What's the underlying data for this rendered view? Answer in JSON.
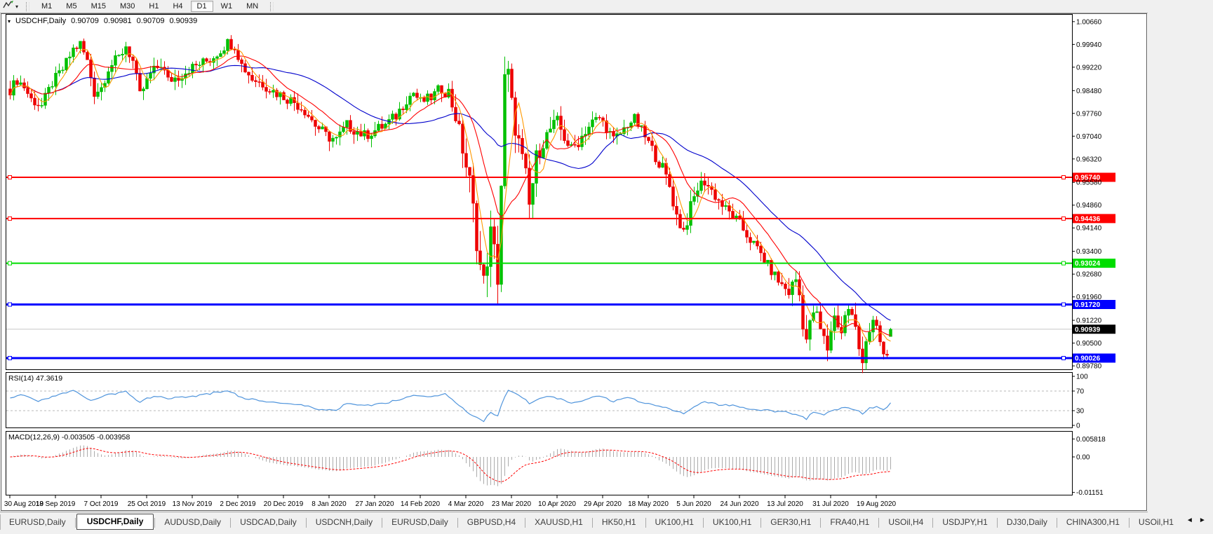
{
  "colors": {
    "up": "#00C000",
    "down": "#ED0000",
    "ma_fast": "#FF9900",
    "ma_mid": "#FF0000",
    "ma_slow": "#0000CC",
    "hline_red": "#FF0000",
    "hline_green": "#00DD00",
    "hline_blue": "#0000FF",
    "rsi_line": "#4F94DC",
    "macd_hist": "#ABABAB",
    "macd_signal": "#FF0000",
    "grid_current": "#C8C8C8",
    "toolbar_bg": "#F0F0F0",
    "pane_bg": "#FFFFFF"
  },
  "icons": {
    "caret_down": "▼",
    "caret_small": "▾",
    "scroll_left": "◄",
    "scroll_right": "►"
  },
  "toolbar": {
    "timeframes": [
      "M1",
      "M5",
      "M15",
      "M30",
      "H1",
      "H4",
      "D1",
      "W1",
      "MN"
    ],
    "active": "D1"
  },
  "chart": {
    "symbol": "USDCHF,Daily",
    "open": "0.90709",
    "high": "0.90981",
    "low": "0.90709",
    "close": "0.90939",
    "current_price_label": "0.90939"
  },
  "rsi": {
    "label": "RSI(14) 47.3619",
    "value": "47.3619"
  },
  "macd": {
    "label": "MACD(12,26,9) -0.003505 -0.003958",
    "macd_value": "-0.003505",
    "signal_value": "-0.003958"
  },
  "tabs": {
    "items": [
      {
        "label": "EURUSD,Daily",
        "active": false
      },
      {
        "label": "USDCHF,Daily",
        "active": true
      },
      {
        "label": "AUDUSD,Daily",
        "active": false
      },
      {
        "label": "USDCAD,Daily",
        "active": false
      },
      {
        "label": "USDCNH,Daily",
        "active": false
      },
      {
        "label": "EURUSD,Daily",
        "active": false
      },
      {
        "label": "GBPUSD,H4",
        "active": false
      },
      {
        "label": "XAUUSD,H1",
        "active": false
      },
      {
        "label": "HK50,H1",
        "active": false
      },
      {
        "label": "UK100,H1",
        "active": false
      },
      {
        "label": "UK100,H1",
        "active": false
      },
      {
        "label": "GER30,H1",
        "active": false
      },
      {
        "label": "FRA40,H1",
        "active": false
      },
      {
        "label": "USOil,H4",
        "active": false
      },
      {
        "label": "USDJPY,H1",
        "active": false
      },
      {
        "label": "DJ30,Daily",
        "active": false
      },
      {
        "label": "CHINA300,H1",
        "active": false
      },
      {
        "label": "USOil,H1",
        "active": false
      }
    ]
  },
  "chart_data": [
    {
      "type": "candlestick",
      "title": "USDCHF,Daily",
      "n_bars": 252,
      "ylim": [
        0.8967,
        1.009
      ],
      "y_ticks": [
        "1.00660",
        "0.99940",
        "0.99220",
        "0.98480",
        "0.97760",
        "0.97040",
        "0.96320",
        "0.95580",
        "0.94860",
        "0.94140",
        "0.93400",
        "0.92680",
        "0.91960",
        "0.91220",
        "0.90500",
        "0.89780"
      ],
      "x_tick_days": [
        0,
        13,
        26,
        39,
        52,
        65,
        78,
        91,
        104,
        117,
        130,
        143,
        156,
        169,
        182,
        195,
        208,
        221,
        234,
        247
      ],
      "x_tick_labels": [
        "30 Aug 2019",
        "18 Sep 2019",
        "7 Oct 2019",
        "25 Oct 2019",
        "13 Nov 2019",
        "2 Dec 2019",
        "20 Dec 2019",
        "8 Jan 2020",
        "27 Jan 2020",
        "14 Feb 2020",
        "4 Mar 2020",
        "23 Mar 2020",
        "10 Apr 2020",
        "29 Apr 2020",
        "18 May 2020",
        "5 Jun 2020",
        "24 Jun 2020",
        "13 Jul 2020",
        "31 Jul 2020",
        "19 Aug 2020"
      ],
      "last_bar": {
        "open": 0.90709,
        "high": 0.90981,
        "low": 0.90709,
        "close": 0.90939
      },
      "close_anchors": [
        [
          0,
          0.985
        ],
        [
          2,
          0.9882
        ],
        [
          4,
          0.986
        ],
        [
          6,
          0.982
        ],
        [
          9,
          0.98
        ],
        [
          12,
          0.9872
        ],
        [
          15,
          0.9915
        ],
        [
          18,
          0.9978
        ],
        [
          20,
          0.9995
        ],
        [
          22,
          0.994
        ],
        [
          24,
          0.9842
        ],
        [
          26,
          0.9858
        ],
        [
          28,
          0.992
        ],
        [
          31,
          0.9952
        ],
        [
          33,
          0.999
        ],
        [
          35,
          0.994
        ],
        [
          37,
          0.9832
        ],
        [
          40,
          0.99
        ],
        [
          43,
          0.9932
        ],
        [
          45,
          0.988
        ],
        [
          48,
          0.9892
        ],
        [
          51,
          0.9916
        ],
        [
          54,
          0.9932
        ],
        [
          57,
          0.9946
        ],
        [
          60,
          0.9976
        ],
        [
          62,
          1.0
        ],
        [
          64,
          0.999
        ],
        [
          66,
          0.993
        ],
        [
          69,
          0.9886
        ],
        [
          72,
          0.987
        ],
        [
          75,
          0.9846
        ],
        [
          78,
          0.983
        ],
        [
          81,
          0.9812
        ],
        [
          84,
          0.9786
        ],
        [
          87,
          0.974
        ],
        [
          90,
          0.9706
        ],
        [
          93,
          0.9692
        ],
        [
          96,
          0.9738
        ],
        [
          98,
          0.9726
        ],
        [
          101,
          0.9706
        ],
        [
          104,
          0.9722
        ],
        [
          107,
          0.974
        ],
        [
          110,
          0.9768
        ],
        [
          113,
          0.982
        ],
        [
          115,
          0.9842
        ],
        [
          117,
          0.9812
        ],
        [
          120,
          0.9826
        ],
        [
          123,
          0.9856
        ],
        [
          125,
          0.9842
        ],
        [
          127,
          0.9768
        ],
        [
          129,
          0.9665
        ],
        [
          131,
          0.9556
        ],
        [
          132,
          0.947
        ],
        [
          133,
          0.9382
        ],
        [
          134,
          0.9292
        ],
        [
          135,
          0.9236
        ],
        [
          136,
          0.9322
        ],
        [
          137,
          0.9392
        ],
        [
          138,
          0.9336
        ],
        [
          139,
          0.9262
        ],
        [
          140,
          0.9552
        ],
        [
          141,
          0.9872
        ],
        [
          142,
          0.9892
        ],
        [
          143,
          0.9796
        ],
        [
          144,
          0.9736
        ],
        [
          145,
          0.9682
        ],
        [
          146,
          0.9626
        ],
        [
          147,
          0.9576
        ],
        [
          148,
          0.9482
        ],
        [
          149,
          0.9556
        ],
        [
          150,
          0.9636
        ],
        [
          152,
          0.9686
        ],
        [
          154,
          0.9726
        ],
        [
          156,
          0.9748
        ],
        [
          158,
          0.97
        ],
        [
          160,
          0.9662
        ],
        [
          162,
          0.9686
        ],
        [
          164,
          0.9722
        ],
        [
          166,
          0.9748
        ],
        [
          168,
          0.9762
        ],
        [
          170,
          0.9732
        ],
        [
          172,
          0.9692
        ],
        [
          174,
          0.9712
        ],
        [
          176,
          0.9742
        ],
        [
          178,
          0.9758
        ],
        [
          180,
          0.9722
        ],
        [
          182,
          0.9682
        ],
        [
          184,
          0.9642
        ],
        [
          186,
          0.9602
        ],
        [
          188,
          0.9546
        ],
        [
          190,
          0.9452
        ],
        [
          192,
          0.9406
        ],
        [
          194,
          0.9476
        ],
        [
          196,
          0.954
        ],
        [
          198,
          0.9562
        ],
        [
          200,
          0.9532
        ],
        [
          202,
          0.95
        ],
        [
          204,
          0.9472
        ],
        [
          206,
          0.9452
        ],
        [
          208,
          0.9426
        ],
        [
          210,
          0.9392
        ],
        [
          212,
          0.9362
        ],
        [
          214,
          0.9332
        ],
        [
          216,
          0.9296
        ],
        [
          218,
          0.9262
        ],
        [
          220,
          0.9232
        ],
        [
          222,
          0.9212
        ],
        [
          224,
          0.9252
        ],
        [
          225,
          0.9202
        ],
        [
          226,
          0.9122
        ],
        [
          227,
          0.9062
        ],
        [
          228,
          0.9102
        ],
        [
          229,
          0.9152
        ],
        [
          230,
          0.9132
        ],
        [
          231,
          0.9092
        ],
        [
          232,
          0.9062
        ],
        [
          233,
          0.9032
        ],
        [
          234,
          0.9096
        ],
        [
          235,
          0.9132
        ],
        [
          236,
          0.9112
        ],
        [
          237,
          0.9086
        ],
        [
          238,
          0.9132
        ],
        [
          239,
          0.9162
        ],
        [
          240,
          0.9132
        ],
        [
          241,
          0.9092
        ],
        [
          242,
          0.9032
        ],
        [
          243,
          0.9006
        ],
        [
          244,
          0.9062
        ],
        [
          245,
          0.9092
        ],
        [
          246,
          0.9112
        ],
        [
          247,
          0.9086
        ],
        [
          248,
          0.9052
        ],
        [
          249,
          0.9012
        ],
        [
          250,
          0.9002
        ],
        [
          251,
          0.9094
        ]
      ],
      "range_anchors": [
        [
          0,
          0.006
        ],
        [
          30,
          0.0065
        ],
        [
          60,
          0.006
        ],
        [
          90,
          0.007
        ],
        [
          120,
          0.006
        ],
        [
          126,
          0.009
        ],
        [
          130,
          0.013
        ],
        [
          134,
          0.016
        ],
        [
          138,
          0.015
        ],
        [
          141,
          0.018
        ],
        [
          144,
          0.013
        ],
        [
          148,
          0.011
        ],
        [
          152,
          0.009
        ],
        [
          160,
          0.007
        ],
        [
          170,
          0.006
        ],
        [
          180,
          0.006
        ],
        [
          188,
          0.008
        ],
        [
          192,
          0.009
        ],
        [
          198,
          0.007
        ],
        [
          208,
          0.006
        ],
        [
          216,
          0.006
        ],
        [
          222,
          0.008
        ],
        [
          226,
          0.012
        ],
        [
          230,
          0.009
        ],
        [
          236,
          0.008
        ],
        [
          242,
          0.009
        ],
        [
          247,
          0.008
        ],
        [
          251,
          0.006
        ]
      ],
      "moving_averages": [
        {
          "period": 34,
          "color": "#0000CC"
        },
        {
          "period": 13,
          "color": "#FF0000"
        },
        {
          "period": 5,
          "color": "#FF9900"
        }
      ],
      "hlines": [
        {
          "price": 0.9574,
          "label": "0.95740",
          "color": "#FF0000",
          "width": 2
        },
        {
          "price": 0.94436,
          "label": "0.94436",
          "color": "#FF0000",
          "width": 2
        },
        {
          "price": 0.93024,
          "label": "0.93024",
          "color": "#00DD00",
          "width": 2
        },
        {
          "price": 0.9172,
          "label": "0.91720",
          "color": "#0000FF",
          "width": 3
        },
        {
          "price": 0.90026,
          "label": "0.90026",
          "color": "#0000FF",
          "width": 3
        }
      ],
      "current_price": {
        "value": 0.90939,
        "label": "0.90939"
      }
    },
    {
      "type": "line",
      "name": "RSI(14)",
      "current": 47.3619,
      "range": [
        0,
        100
      ],
      "levels": [
        30,
        70
      ],
      "scale_labels": [
        "100",
        "70",
        "30",
        "0"
      ],
      "color": "#4F94DC",
      "anchors": [
        [
          0,
          55
        ],
        [
          4,
          63
        ],
        [
          8,
          48
        ],
        [
          12,
          58
        ],
        [
          18,
          70
        ],
        [
          23,
          52
        ],
        [
          28,
          62
        ],
        [
          33,
          68
        ],
        [
          37,
          48
        ],
        [
          41,
          60
        ],
        [
          45,
          54
        ],
        [
          50,
          58
        ],
        [
          55,
          62
        ],
        [
          62,
          72
        ],
        [
          66,
          56
        ],
        [
          72,
          50
        ],
        [
          78,
          46
        ],
        [
          84,
          40
        ],
        [
          88,
          33
        ],
        [
          93,
          31
        ],
        [
          96,
          45
        ],
        [
          101,
          40
        ],
        [
          107,
          46
        ],
        [
          111,
          52
        ],
        [
          115,
          61
        ],
        [
          119,
          57
        ],
        [
          124,
          65
        ],
        [
          127,
          47
        ],
        [
          130,
          28
        ],
        [
          133,
          15
        ],
        [
          135,
          9
        ],
        [
          137,
          26
        ],
        [
          139,
          19
        ],
        [
          141,
          60
        ],
        [
          142,
          73
        ],
        [
          144,
          66
        ],
        [
          146,
          57
        ],
        [
          148,
          45
        ],
        [
          150,
          53
        ],
        [
          154,
          59
        ],
        [
          158,
          51
        ],
        [
          160,
          46
        ],
        [
          164,
          53
        ],
        [
          168,
          59
        ],
        [
          172,
          49
        ],
        [
          176,
          56
        ],
        [
          180,
          47
        ],
        [
          184,
          42
        ],
        [
          188,
          35
        ],
        [
          190,
          27
        ],
        [
          192,
          25
        ],
        [
          195,
          38
        ],
        [
          198,
          47
        ],
        [
          202,
          42
        ],
        [
          206,
          40
        ],
        [
          210,
          35
        ],
        [
          214,
          32
        ],
        [
          218,
          29
        ],
        [
          222,
          27
        ],
        [
          225,
          20
        ],
        [
          227,
          13
        ],
        [
          229,
          28
        ],
        [
          232,
          22
        ],
        [
          235,
          31
        ],
        [
          238,
          38
        ],
        [
          241,
          32
        ],
        [
          243,
          24
        ],
        [
          245,
          36
        ],
        [
          247,
          38
        ],
        [
          249,
          30
        ],
        [
          251,
          47
        ]
      ]
    },
    {
      "type": "bar",
      "name": "MACD(12,26,9)",
      "macd": -0.003505,
      "signal": -0.003958,
      "range": [
        -0.01151,
        0.005818
      ],
      "scale_labels": [
        "0.005818",
        "0.00",
        "-0.01151"
      ],
      "histogram_color": "#ABABAB",
      "signal_color": "#FF0000"
    }
  ]
}
